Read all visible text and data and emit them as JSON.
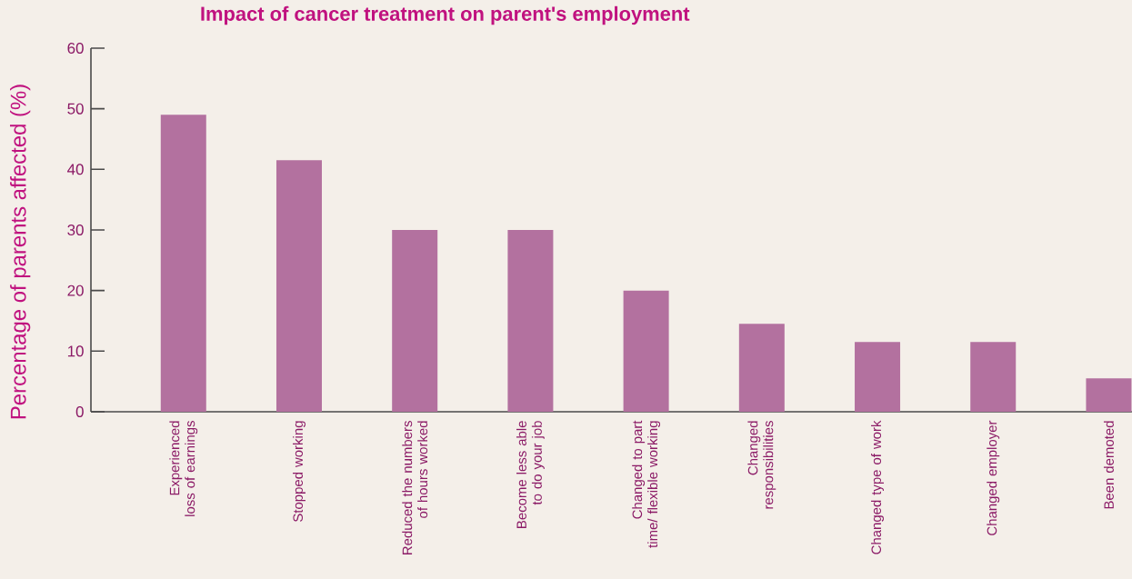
{
  "chart_data": {
    "type": "bar",
    "title": "Impact of cancer treatment on parent's employment",
    "ylabel": "Percentage of parents affected (%)",
    "categories": [
      "Experienced loss of earnings",
      "Stopped working",
      "Reduced the numbers of hours worked",
      "Become less able to do your job",
      "Changed to part time/ flexible working",
      "Changed responsibilities",
      "Changed type of work",
      "Changed employer",
      "Been demoted"
    ],
    "values": [
      49,
      41.5,
      30,
      30,
      20,
      14.5,
      11.5,
      11.5,
      5.5
    ],
    "color": "#b3719f",
    "ylim": [
      0,
      60
    ],
    "yticks": [
      0,
      10,
      20,
      30,
      40,
      50,
      60
    ],
    "grid": false
  }
}
